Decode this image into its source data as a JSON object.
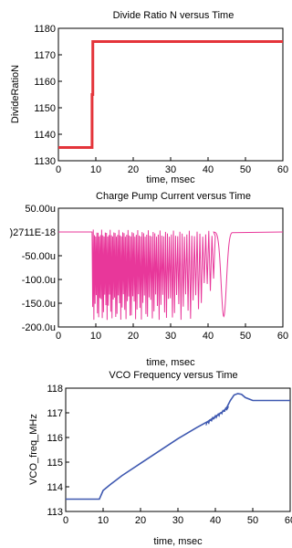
{
  "chart_data": [
    {
      "type": "line",
      "title": "Divide Ratio N versus Time",
      "xlabel": "time, msec",
      "ylabel": "DivideRatioN",
      "xlim": [
        0,
        60
      ],
      "ylim": [
        1130,
        1180
      ],
      "x_ticks": [
        "0",
        "10",
        "20",
        "30",
        "40",
        "50",
        "60"
      ],
      "y_ticks": [
        "1130",
        "1140",
        "1150",
        "1160",
        "1170",
        "1180"
      ],
      "grid": false,
      "label_color": "#e4343a",
      "series_color": "#e4343a",
      "series": [
        {
          "x": [
            0,
            9,
            9,
            9.2,
            9.2,
            60
          ],
          "y": [
            1135,
            1135,
            1155,
            1155,
            1175,
            1175
          ]
        }
      ]
    },
    {
      "type": "line",
      "title": "Charge Pump Current versus Time",
      "xlabel": "time, msec",
      "ylabel": "",
      "xlim": [
        0,
        60
      ],
      "ylim": [
        -200,
        50
      ],
      "x_ticks": [
        "0",
        "10",
        "20",
        "30",
        "40",
        "50",
        "60"
      ],
      "y_ticks": [
        "50.00u",
        ")2711E-18",
        "-50.00u",
        "-100.0u",
        "-150.0u",
        "-200.0u"
      ],
      "y_tick_units": "uA",
      "grid": false,
      "label_color": "#e0368f",
      "series_color": "#e8379a",
      "description": "Dense oscillation between approx -185u and +5u from about 9 to 42 msec, followed by a single dip to about -178u near 44 msec, returning to 0.",
      "series": [
        {
          "x": [
            0,
            9,
            42,
            44,
            46,
            60
          ],
          "y": [
            0,
            0,
            -180,
            -178,
            0,
            0
          ]
        }
      ]
    },
    {
      "type": "line",
      "title": "VCO Frequency versus Time",
      "xlabel": "time, msec",
      "ylabel": "VCO_freq_MHz",
      "xlim": [
        0,
        60
      ],
      "ylim": [
        113,
        118
      ],
      "x_ticks": [
        "0",
        "10",
        "20",
        "30",
        "40",
        "50",
        "60"
      ],
      "y_ticks": [
        "113",
        "114",
        "115",
        "116",
        "117",
        "118"
      ],
      "grid": false,
      "label_color": "#3048a8",
      "series_color": "#3e58b0",
      "series": [
        {
          "x": [
            0,
            9,
            10,
            12,
            15,
            20,
            25,
            30,
            35,
            38,
            40,
            41,
            42,
            43,
            44,
            45,
            46,
            47,
            48,
            50,
            53,
            60
          ],
          "y": [
            113.5,
            113.5,
            113.85,
            114.1,
            114.45,
            114.95,
            115.45,
            115.95,
            116.4,
            116.65,
            116.85,
            116.95,
            117.05,
            117.2,
            117.5,
            117.72,
            117.78,
            117.75,
            117.62,
            117.5,
            117.5,
            117.5
          ]
        }
      ]
    }
  ]
}
